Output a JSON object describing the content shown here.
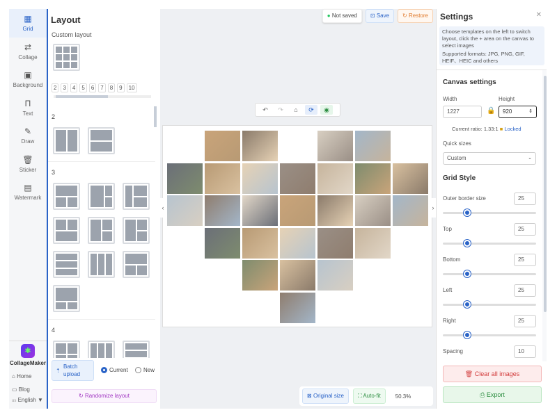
{
  "nav": {
    "items": [
      {
        "label": "Grid",
        "icon": "grid-icon"
      },
      {
        "label": "Collage",
        "icon": "swap-icon"
      },
      {
        "label": "Background",
        "icon": "image-icon"
      },
      {
        "label": "Text",
        "icon": "text-icon"
      },
      {
        "label": "Draw",
        "icon": "pencil-icon"
      },
      {
        "label": "Sticker",
        "icon": "trash-icon"
      },
      {
        "label": "Watermark",
        "icon": "watermark-icon"
      }
    ],
    "brand": "CollageMaker",
    "home": "Home",
    "blog": "Blog",
    "language": "English ▼",
    "lang_prefix": "us"
  },
  "layout": {
    "title": "Layout",
    "custom_label": "Custom layout",
    "numbers": [
      "2",
      "3",
      "4",
      "5",
      "6",
      "7",
      "8",
      "9",
      "10"
    ],
    "sections": [
      "2",
      "3",
      "4"
    ],
    "batch_upload": "Batch upload",
    "radio_current": "Current",
    "radio_new": "New",
    "randomize": "Randomize layout"
  },
  "topbar": {
    "status": "Not saved",
    "save": "Save",
    "restore": "Restore",
    "status_color": "#22c55e"
  },
  "footer": {
    "original_size": "Original size",
    "auto_fit": "Auto-fit",
    "zoom": "50.3%"
  },
  "settings": {
    "title": "Settings",
    "info1": "Choose templates on the left to switch layout, click the + area on the canvas to select images",
    "info2": "Supported formats: JPG, PNG, GIF, HEIF、HEIC and others",
    "canvas_title": "Canvas settings",
    "width_label": "Width",
    "height_label": "Height",
    "width": "1227",
    "height": "920",
    "ratio": "Current ratio: 1.33:1",
    "locked": "Locked",
    "quick_sizes_label": "Quick sizes",
    "quick_size": "Custom",
    "grid_title": "Grid Style",
    "sliders": [
      {
        "label": "Outer border size",
        "value": "25"
      },
      {
        "label": "Top",
        "value": "25"
      },
      {
        "label": "Bottom",
        "value": "25"
      },
      {
        "label": "Left",
        "value": "25"
      },
      {
        "label": "Right",
        "value": "25"
      }
    ],
    "spacing_label": "Spacing",
    "spacing": "10",
    "clear": "Clear all images",
    "export": "Export"
  }
}
